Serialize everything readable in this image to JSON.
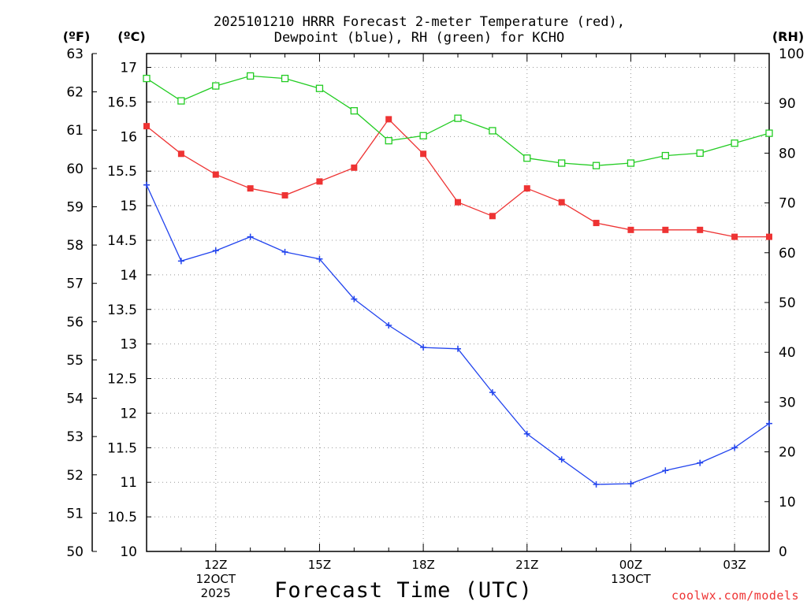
{
  "chart_data": {
    "type": "line",
    "title": [
      "2025101210 HRRR Forecast 2-meter Temperature (red),",
      "Dewpoint (blue), RH (green) for KCHO"
    ],
    "xlabel": "Forecast Time (UTC)",
    "units_left_outer": "(ºF)",
    "units_left_inner": "(ºC)",
    "units_right": "(RH)",
    "credit": "coolwx.com/models",
    "x_hours": [
      10,
      11,
      12,
      13,
      14,
      15,
      16,
      17,
      18,
      19,
      20,
      21,
      22,
      23,
      24,
      25,
      26,
      27,
      28
    ],
    "xlim": [
      10,
      28
    ],
    "x_ticks": [
      {
        "hour": 12,
        "lines": [
          "12Z",
          "12OCT",
          "2025"
        ]
      },
      {
        "hour": 15,
        "lines": [
          "15Z"
        ]
      },
      {
        "hour": 18,
        "lines": [
          "18Z"
        ]
      },
      {
        "hour": 21,
        "lines": [
          "21Z"
        ]
      },
      {
        "hour": 24,
        "lines": [
          "00Z",
          "13OCT"
        ]
      },
      {
        "hour": 27,
        "lines": [
          "03Z"
        ]
      }
    ],
    "celsius_axis": {
      "ylim": [
        10,
        17.2
      ],
      "ticks": [
        "10",
        "10.5",
        "11",
        "11.5",
        "12",
        "12.5",
        "13",
        "13.5",
        "14",
        "14.5",
        "15",
        "15.5",
        "16",
        "16.5",
        "17"
      ]
    },
    "fahrenheit_axis": {
      "ylim": [
        50,
        63
      ],
      "ticks": [
        "50",
        "51",
        "52",
        "53",
        "54",
        "55",
        "56",
        "57",
        "58",
        "59",
        "60",
        "61",
        "62",
        "63"
      ]
    },
    "rh_axis": {
      "ylim": [
        0,
        100
      ],
      "ticks": [
        "0",
        "10",
        "20",
        "30",
        "40",
        "50",
        "60",
        "70",
        "80",
        "90",
        "100"
      ]
    },
    "series": [
      {
        "name": "Temperature",
        "units": "C",
        "color": "#ee3333",
        "marker": "filled-square",
        "values": [
          16.15,
          15.75,
          15.45,
          15.25,
          15.15,
          15.35,
          15.55,
          16.25,
          15.75,
          15.05,
          14.85,
          15.25,
          15.05,
          14.75,
          14.65,
          14.65,
          14.65,
          14.55,
          14.55
        ]
      },
      {
        "name": "Dewpoint",
        "units": "C",
        "color": "#2244ee",
        "marker": "plus",
        "values": [
          15.3,
          14.2,
          14.35,
          14.55,
          14.33,
          14.23,
          13.65,
          13.27,
          12.95,
          12.93,
          12.3,
          11.7,
          11.33,
          10.97,
          10.98,
          11.17,
          11.28,
          11.5,
          11.85
        ]
      },
      {
        "name": "RH",
        "units": "%",
        "color": "#22cc22",
        "marker": "open-square",
        "values": [
          95,
          90.5,
          93.5,
          95.5,
          95,
          93,
          88.5,
          82.5,
          83.5,
          87,
          84.5,
          79,
          78,
          77.5,
          78,
          79.5,
          80,
          82,
          84
        ]
      }
    ]
  }
}
